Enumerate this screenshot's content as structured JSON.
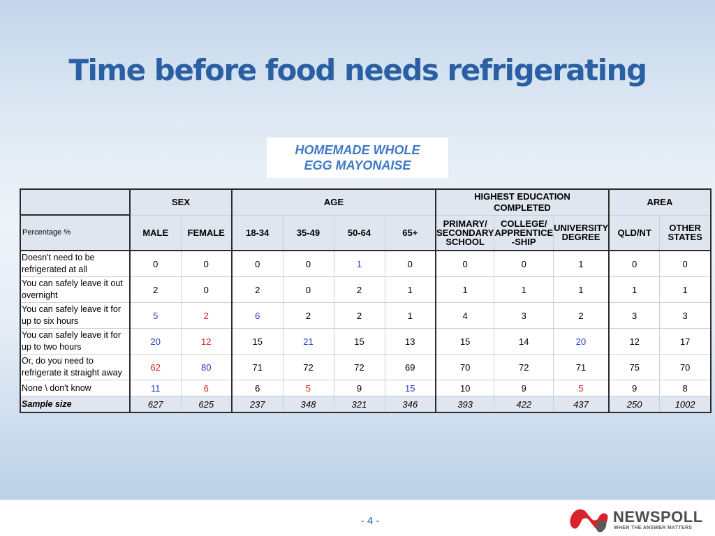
{
  "title": "Time before food needs refrigerating",
  "subtitle_lines": [
    "HOMEMADE WHOLE",
    "EGG MAYONAISE"
  ],
  "table": {
    "group_headers": [
      "SEX",
      "AGE",
      "HIGHEST EDUCATION COMPLETED",
      "AREA"
    ],
    "row_header_label": "Percentage %",
    "columns": [
      "MALE",
      "FEMALE",
      "18-34",
      "35-49",
      "50-64",
      "65+",
      "PRIMARY/ SECONDARY SCHOOL",
      "COLLEGE/ APPRENTICE -SHIP",
      "UNIVERSITY DEGREE",
      "QLD/NT",
      "OTHER STATES"
    ],
    "rows": [
      {
        "label": "Doesn't need to be refrigerated at all",
        "values": [
          "0",
          "0",
          "0",
          "0",
          "1",
          "0",
          "0",
          "0",
          "1",
          "0",
          "0"
        ]
      },
      {
        "label": "You can safely leave it out overnight",
        "values": [
          "2",
          "0",
          "2",
          "0",
          "2",
          "1",
          "1",
          "1",
          "1",
          "1",
          "1"
        ]
      },
      {
        "label": "You can safely leave it for up to six hours",
        "values": [
          "5",
          "2",
          "6",
          "2",
          "2",
          "1",
          "4",
          "3",
          "2",
          "3",
          "3"
        ]
      },
      {
        "label": "You can safely leave it for up to two hours",
        "values": [
          "20",
          "12",
          "15",
          "21",
          "15",
          "13",
          "15",
          "14",
          "20",
          "12",
          "17"
        ]
      },
      {
        "label": "Or, do you need to refrigerate it straight away",
        "values": [
          "62",
          "80",
          "71",
          "72",
          "72",
          "69",
          "70",
          "72",
          "71",
          "75",
          "70"
        ]
      },
      {
        "label": "None \\ don't know",
        "values": [
          "11",
          "6",
          "6",
          "5",
          "9",
          "15",
          "10",
          "9",
          "5",
          "9",
          "8"
        ]
      }
    ],
    "sample": {
      "label": "Sample size",
      "values": [
        "627",
        "625",
        "237",
        "348",
        "321",
        "346",
        "393",
        "422",
        "437",
        "250",
        "1002"
      ]
    },
    "highlight_colors": {
      "higher": "#1f36c9",
      "lower": "#d61f1f"
    }
  },
  "footer": {
    "page_number": "- 4 -",
    "logo_text": "NEWSPOLL",
    "logo_tagline": "WHEN THE ANSWER MATTERS"
  }
}
